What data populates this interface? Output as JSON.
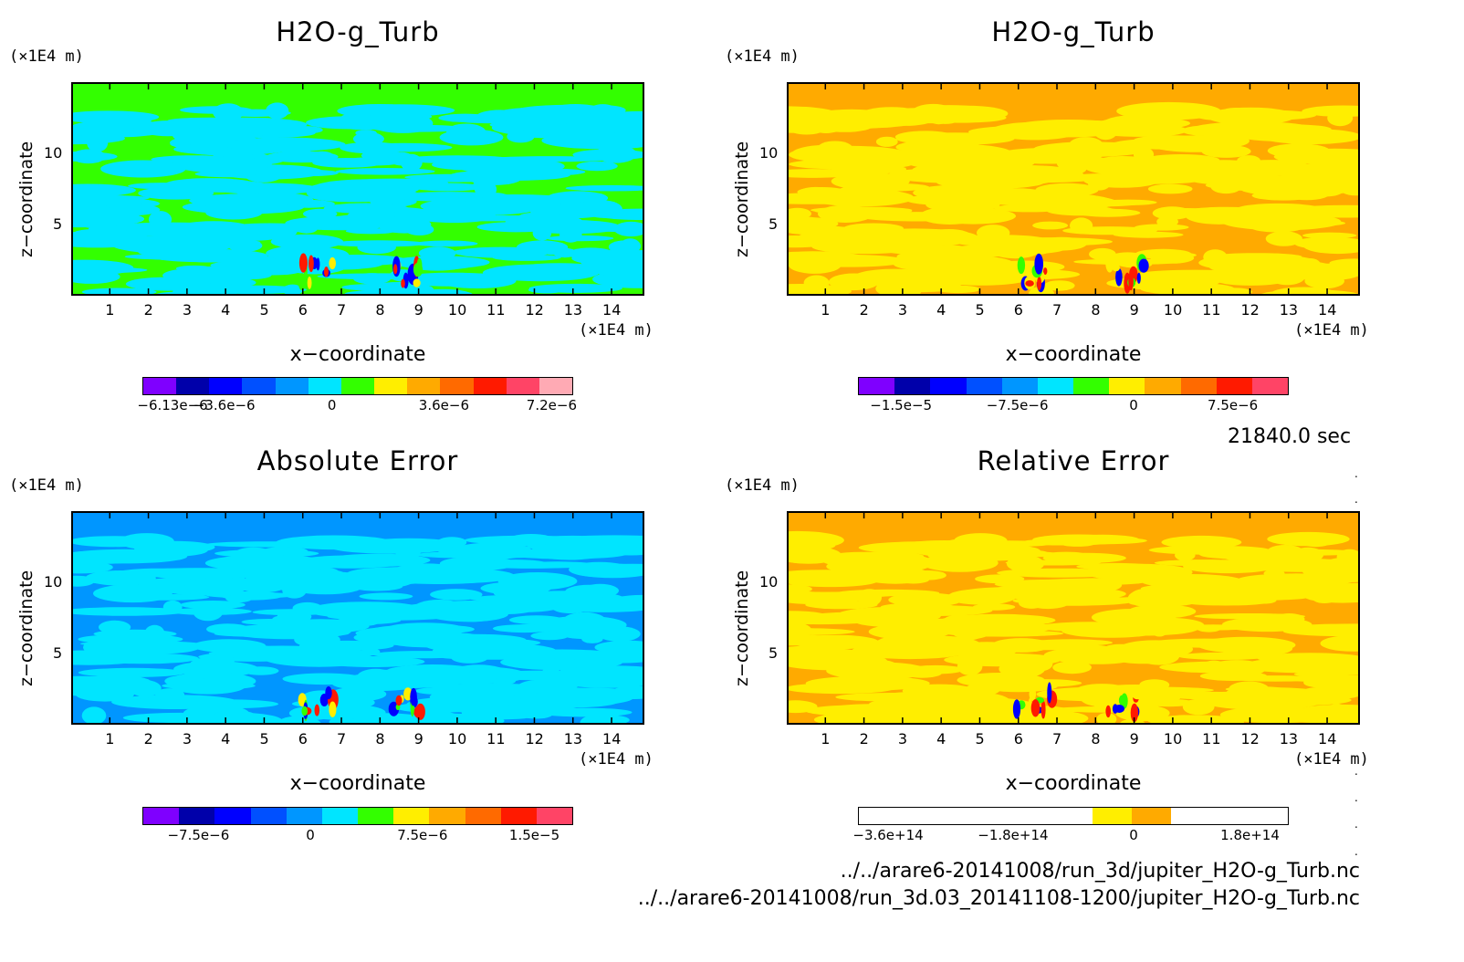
{
  "chart_data": [
    {
      "type": "heatmap",
      "title": "H2O-g_Turb",
      "xlabel": "x−coordinate",
      "ylabel": "z−coordinate",
      "x_unit": "(×1E4 m)",
      "y_unit": "(×1E4 m)",
      "xlim": [
        0,
        14.85
      ],
      "ylim": [
        0,
        15
      ],
      "x_ticks": [
        "1",
        "2",
        "3",
        "4",
        "5",
        "6",
        "7",
        "8",
        "9",
        "10",
        "11",
        "12",
        "13",
        "14"
      ],
      "y_ticks": [
        "5",
        "10"
      ],
      "base_color": "#33ff00",
      "pattern_color": "#00e5ff",
      "colorbar_colors": [
        "#7f00ff",
        "#0000aa",
        "#0000ff",
        "#0050ff",
        "#0096ff",
        "#00e5ff",
        "#33ff00",
        "#ffee00",
        "#ffaa00",
        "#ff6a00",
        "#ff1a00",
        "#ff4466",
        "#ffaab4"
      ],
      "colorbar_labels": [
        "−6.13e−6",
        "−3.6e−6",
        "0",
        "3.6e−6",
        "7.2e−6"
      ]
    },
    {
      "type": "heatmap",
      "title": "H2O-g_Turb",
      "xlabel": "x−coordinate",
      "ylabel": "z−coordinate",
      "x_unit": "(×1E4 m)",
      "y_unit": "(×1E4 m)",
      "xlim": [
        0,
        14.85
      ],
      "ylim": [
        0,
        15
      ],
      "x_ticks": [
        "1",
        "2",
        "3",
        "4",
        "5",
        "6",
        "7",
        "8",
        "9",
        "10",
        "11",
        "12",
        "13",
        "14"
      ],
      "y_ticks": [
        "5",
        "10"
      ],
      "base_color": "#ffaa00",
      "pattern_color": "#ffee00",
      "colorbar_colors": [
        "#7f00ff",
        "#0000aa",
        "#0000ff",
        "#0050ff",
        "#0096ff",
        "#00e5ff",
        "#33ff00",
        "#ffee00",
        "#ffaa00",
        "#ff6a00",
        "#ff1a00",
        "#ff4466"
      ],
      "colorbar_labels": [
        "−1.5e−5",
        "−7.5e−6",
        "0",
        "7.5e−6"
      ]
    },
    {
      "type": "heatmap",
      "title": "Absolute Error",
      "xlabel": "x−coordinate",
      "ylabel": "z−coordinate",
      "x_unit": "(×1E4 m)",
      "y_unit": "(×1E4 m)",
      "xlim": [
        0,
        14.85
      ],
      "ylim": [
        0,
        15
      ],
      "x_ticks": [
        "1",
        "2",
        "3",
        "4",
        "5",
        "6",
        "7",
        "8",
        "9",
        "10",
        "11",
        "12",
        "13",
        "14"
      ],
      "y_ticks": [
        "5",
        "10"
      ],
      "base_color": "#0096ff",
      "pattern_color": "#00e5ff",
      "colorbar_colors": [
        "#7f00ff",
        "#0000aa",
        "#0000ff",
        "#0050ff",
        "#0096ff",
        "#00e5ff",
        "#33ff00",
        "#ffee00",
        "#ffaa00",
        "#ff6a00",
        "#ff1a00",
        "#ff4466"
      ],
      "colorbar_labels": [
        "−7.5e−6",
        "0",
        "7.5e−6",
        "1.5e−5"
      ]
    },
    {
      "type": "heatmap",
      "title": "Relative Error",
      "xlabel": "x−coordinate",
      "ylabel": "z−coordinate",
      "x_unit": "(×1E4 m)",
      "y_unit": "(×1E4 m)",
      "xlim": [
        0,
        14.85
      ],
      "ylim": [
        0,
        15
      ],
      "x_ticks": [
        "1",
        "2",
        "3",
        "4",
        "5",
        "6",
        "7",
        "8",
        "9",
        "10",
        "11",
        "12",
        "13",
        "14"
      ],
      "y_ticks": [
        "5",
        "10"
      ],
      "base_color": "#ffaa00",
      "pattern_color": "#ffee00",
      "colorbar_colors": [
        "#ffffff",
        "#ffffff",
        "#ffffff",
        "#ffffff",
        "#ffffff",
        "#ffffff",
        "#ffee00",
        "#ffaa00",
        "#ffffff",
        "#ffffff",
        "#ffffff"
      ],
      "colorbar_labels": [
        "−3.6e+14",
        "−1.8e+14",
        "0",
        "1.8e+14"
      ]
    }
  ],
  "footer": {
    "time": "21840.0 sec",
    "file1": "../../arare6-20141008/run_3d/jupiter_H2O-g_Turb.nc",
    "file2": "../../arare6-20141008/run_3d.03_20141108-1200/jupiter_H2O-g_Turb.nc"
  }
}
